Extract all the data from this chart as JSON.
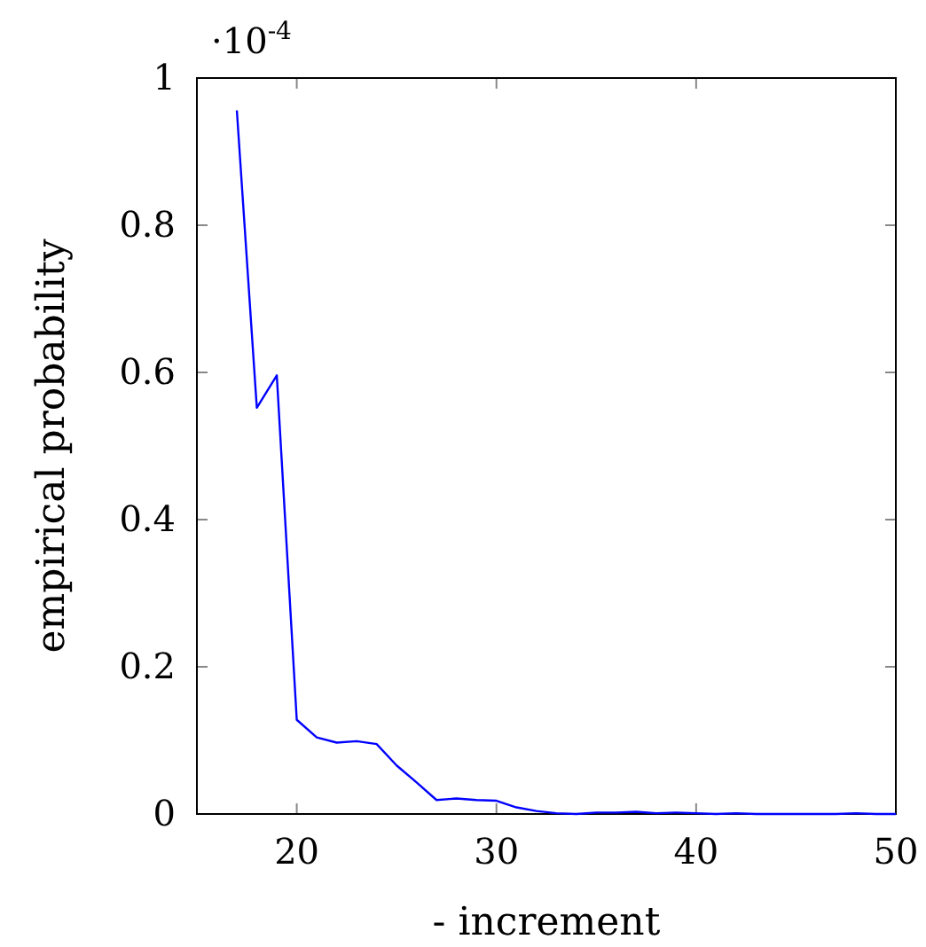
{
  "chart_data": {
    "type": "line",
    "xlabel": "- increment",
    "ylabel": "empirical probability",
    "annotations": [
      "·10$^{-4}$"
    ],
    "x": [
      17,
      18,
      19,
      20,
      21,
      22,
      23,
      24,
      25,
      26,
      27,
      28,
      29,
      30,
      31,
      32,
      33,
      34,
      35,
      36,
      37,
      38,
      39,
      40,
      41,
      42,
      43,
      44,
      45,
      46,
      47,
      48,
      49,
      50
    ],
    "series": [
      {
        "color": "#0000ff",
        "values": [
          0.956,
          0.552,
          0.596,
          0.128,
          0.104,
          0.097,
          0.099,
          0.095,
          0.066,
          0.043,
          0.019,
          0.021,
          0.019,
          0.018,
          0.009,
          0.004,
          0.001,
          0,
          0.002,
          0.002,
          0.003,
          0.001,
          0.002,
          0.001,
          0,
          0.001,
          0,
          0,
          0,
          0,
          0,
          0.001,
          0,
          0
        ]
      }
    ],
    "xlim": [
      15,
      50
    ],
    "xticks": [
      20,
      30,
      40,
      50
    ],
    "ylim": [
      0,
      1
    ],
    "yticks": [
      0,
      0.2,
      0.4,
      0.6,
      0.8,
      1
    ],
    "grid": false,
    "marker": "none",
    "line_style": "solid"
  }
}
